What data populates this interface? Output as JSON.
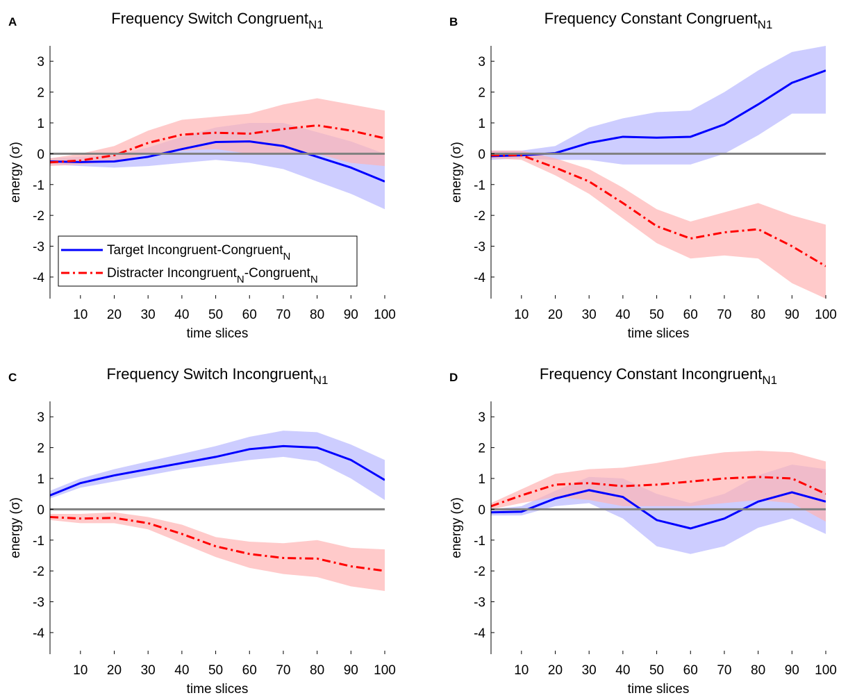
{
  "chart_data": [
    {
      "type": "line",
      "panel": "A",
      "title": "Frequency Switch Congruent",
      "title_subscript": "N1",
      "x_label": "time slices",
      "y_label": "energy (σ)",
      "xlim": [
        1,
        100
      ],
      "ylim": [
        -4.7,
        3.5
      ],
      "xticks": [
        10,
        20,
        30,
        40,
        50,
        60,
        70,
        80,
        90,
        100
      ],
      "yticks": [
        -4,
        -3,
        -2,
        -1,
        0,
        1,
        2,
        3
      ],
      "reference_line": 0,
      "grid": false,
      "legend": "lower left",
      "x": [
        1,
        10,
        20,
        30,
        40,
        50,
        60,
        70,
        80,
        90,
        100
      ],
      "series": [
        {
          "name": [
            "Target Incongruent-Congruent",
            "N"
          ],
          "color": "#0000ff",
          "band_color": "#b8b8ff",
          "style": "solid",
          "values": [
            -0.25,
            -0.27,
            -0.25,
            -0.1,
            0.15,
            0.38,
            0.4,
            0.25,
            -0.1,
            -0.45,
            -0.9
          ],
          "lower": [
            -0.35,
            -0.4,
            -0.45,
            -0.4,
            -0.3,
            -0.2,
            -0.3,
            -0.5,
            -0.9,
            -1.3,
            -1.8
          ],
          "upper": [
            -0.15,
            -0.1,
            -0.05,
            0.2,
            0.55,
            0.85,
            1.0,
            1.0,
            0.7,
            0.4,
            0.0
          ]
        },
        {
          "name": [
            "Distracter Incongruent",
            "N",
            "-Congruent",
            "N"
          ],
          "color": "#ff0000",
          "band_color": "#ffb3b3",
          "style": "dashdot",
          "values": [
            -0.28,
            -0.22,
            -0.05,
            0.35,
            0.62,
            0.68,
            0.65,
            0.8,
            0.92,
            0.75,
            0.5
          ],
          "lower": [
            -0.4,
            -0.35,
            -0.25,
            0.0,
            0.1,
            0.15,
            0.0,
            0.0,
            0.0,
            -0.3,
            -0.4
          ],
          "upper": [
            -0.15,
            0.0,
            0.25,
            0.75,
            1.1,
            1.2,
            1.3,
            1.6,
            1.8,
            1.6,
            1.4
          ]
        }
      ]
    },
    {
      "type": "line",
      "panel": "B",
      "title": "Frequency Constant Congruent",
      "title_subscript": "N1",
      "x_label": "time slices",
      "y_label": "energy (σ)",
      "xlim": [
        1,
        100
      ],
      "ylim": [
        -4.7,
        3.5
      ],
      "xticks": [
        10,
        20,
        30,
        40,
        50,
        60,
        70,
        80,
        90,
        100
      ],
      "yticks": [
        -4,
        -3,
        -2,
        -1,
        0,
        1,
        2,
        3
      ],
      "reference_line": 0,
      "grid": false,
      "x": [
        1,
        10,
        20,
        30,
        40,
        50,
        60,
        70,
        80,
        90,
        100
      ],
      "series": [
        {
          "color": "#0000ff",
          "band_color": "#b8b8ff",
          "style": "solid",
          "values": [
            -0.08,
            -0.05,
            0.02,
            0.35,
            0.55,
            0.52,
            0.55,
            0.95,
            1.6,
            2.3,
            2.7
          ],
          "lower": [
            -0.2,
            -0.15,
            -0.2,
            -0.2,
            -0.35,
            -0.35,
            -0.35,
            0.0,
            0.6,
            1.3,
            1.3
          ],
          "upper": [
            0.1,
            0.1,
            0.25,
            0.85,
            1.15,
            1.35,
            1.4,
            2.0,
            2.7,
            3.3,
            3.5
          ]
        },
        {
          "color": "#ff0000",
          "band_color": "#ffb3b3",
          "style": "dashdot",
          "values": [
            -0.05,
            -0.05,
            -0.45,
            -0.9,
            -1.6,
            -2.35,
            -2.75,
            -2.55,
            -2.45,
            -3.0,
            -3.65
          ],
          "lower": [
            -0.15,
            -0.2,
            -0.7,
            -1.3,
            -2.1,
            -2.9,
            -3.4,
            -3.3,
            -3.4,
            -4.2,
            -4.7
          ],
          "upper": [
            0.1,
            0.1,
            -0.15,
            -0.5,
            -1.1,
            -1.8,
            -2.2,
            -1.9,
            -1.6,
            -2.0,
            -2.3
          ]
        }
      ]
    },
    {
      "type": "line",
      "panel": "C",
      "title": "Frequency Switch Incongruent",
      "title_subscript": "N1",
      "x_label": "time slices",
      "y_label": "energy (σ)",
      "xlim": [
        1,
        100
      ],
      "ylim": [
        -4.7,
        3.5
      ],
      "xticks": [
        10,
        20,
        30,
        40,
        50,
        60,
        70,
        80,
        90,
        100
      ],
      "yticks": [
        -4,
        -3,
        -2,
        -1,
        0,
        1,
        2,
        3
      ],
      "reference_line": 0,
      "grid": false,
      "x": [
        1,
        10,
        20,
        30,
        40,
        50,
        60,
        70,
        80,
        90,
        100
      ],
      "series": [
        {
          "color": "#0000ff",
          "band_color": "#b8b8ff",
          "style": "solid",
          "values": [
            0.45,
            0.85,
            1.1,
            1.3,
            1.5,
            1.7,
            1.95,
            2.05,
            2.0,
            1.6,
            0.95
          ],
          "lower": [
            0.35,
            0.7,
            0.9,
            1.1,
            1.3,
            1.45,
            1.6,
            1.7,
            1.55,
            1.0,
            0.3
          ],
          "upper": [
            0.6,
            1.0,
            1.3,
            1.55,
            1.8,
            2.05,
            2.35,
            2.55,
            2.5,
            2.1,
            1.6
          ]
        },
        {
          "color": "#ff0000",
          "band_color": "#ffb3b3",
          "style": "dashdot",
          "values": [
            -0.25,
            -0.3,
            -0.28,
            -0.45,
            -0.8,
            -1.2,
            -1.45,
            -1.58,
            -1.6,
            -1.85,
            -2.0
          ],
          "lower": [
            -0.35,
            -0.45,
            -0.45,
            -0.65,
            -1.1,
            -1.55,
            -1.9,
            -2.1,
            -2.2,
            -2.5,
            -2.65
          ],
          "upper": [
            -0.15,
            -0.15,
            -0.1,
            -0.25,
            -0.5,
            -0.9,
            -1.05,
            -1.1,
            -1.0,
            -1.25,
            -1.3
          ]
        }
      ]
    },
    {
      "type": "line",
      "panel": "D",
      "title": "Frequency Constant Incongruent",
      "title_subscript": "N1",
      "x_label": "time slices",
      "y_label": "energy (σ)",
      "xlim": [
        1,
        100
      ],
      "ylim": [
        -4.7,
        3.5
      ],
      "xticks": [
        10,
        20,
        30,
        40,
        50,
        60,
        70,
        80,
        90,
        100
      ],
      "yticks": [
        -4,
        -3,
        -2,
        -1,
        0,
        1,
        2,
        3
      ],
      "reference_line": 0,
      "grid": false,
      "x": [
        1,
        10,
        20,
        30,
        40,
        50,
        60,
        70,
        80,
        90,
        100
      ],
      "series": [
        {
          "color": "#0000ff",
          "band_color": "#b8b8ff",
          "style": "solid",
          "values": [
            -0.1,
            -0.08,
            0.35,
            0.62,
            0.4,
            -0.35,
            -0.62,
            -0.3,
            0.25,
            0.55,
            0.25
          ],
          "lower": [
            -0.2,
            -0.2,
            0.1,
            0.2,
            -0.3,
            -1.2,
            -1.45,
            -1.2,
            -0.6,
            -0.3,
            -0.8
          ],
          "upper": [
            0.0,
            0.1,
            0.6,
            1.05,
            1.0,
            0.5,
            0.2,
            0.5,
            1.1,
            1.45,
            1.3
          ]
        },
        {
          "color": "#ff0000",
          "band_color": "#ffb3b3",
          "style": "dashdot",
          "values": [
            0.1,
            0.45,
            0.8,
            0.85,
            0.75,
            0.8,
            0.9,
            1.0,
            1.05,
            1.0,
            0.5
          ],
          "lower": [
            0.0,
            0.2,
            0.4,
            0.3,
            0.1,
            0.1,
            0.1,
            0.2,
            0.3,
            0.2,
            -0.4
          ],
          "upper": [
            0.2,
            0.65,
            1.15,
            1.3,
            1.35,
            1.5,
            1.7,
            1.85,
            1.9,
            1.85,
            1.55
          ]
        }
      ]
    }
  ]
}
